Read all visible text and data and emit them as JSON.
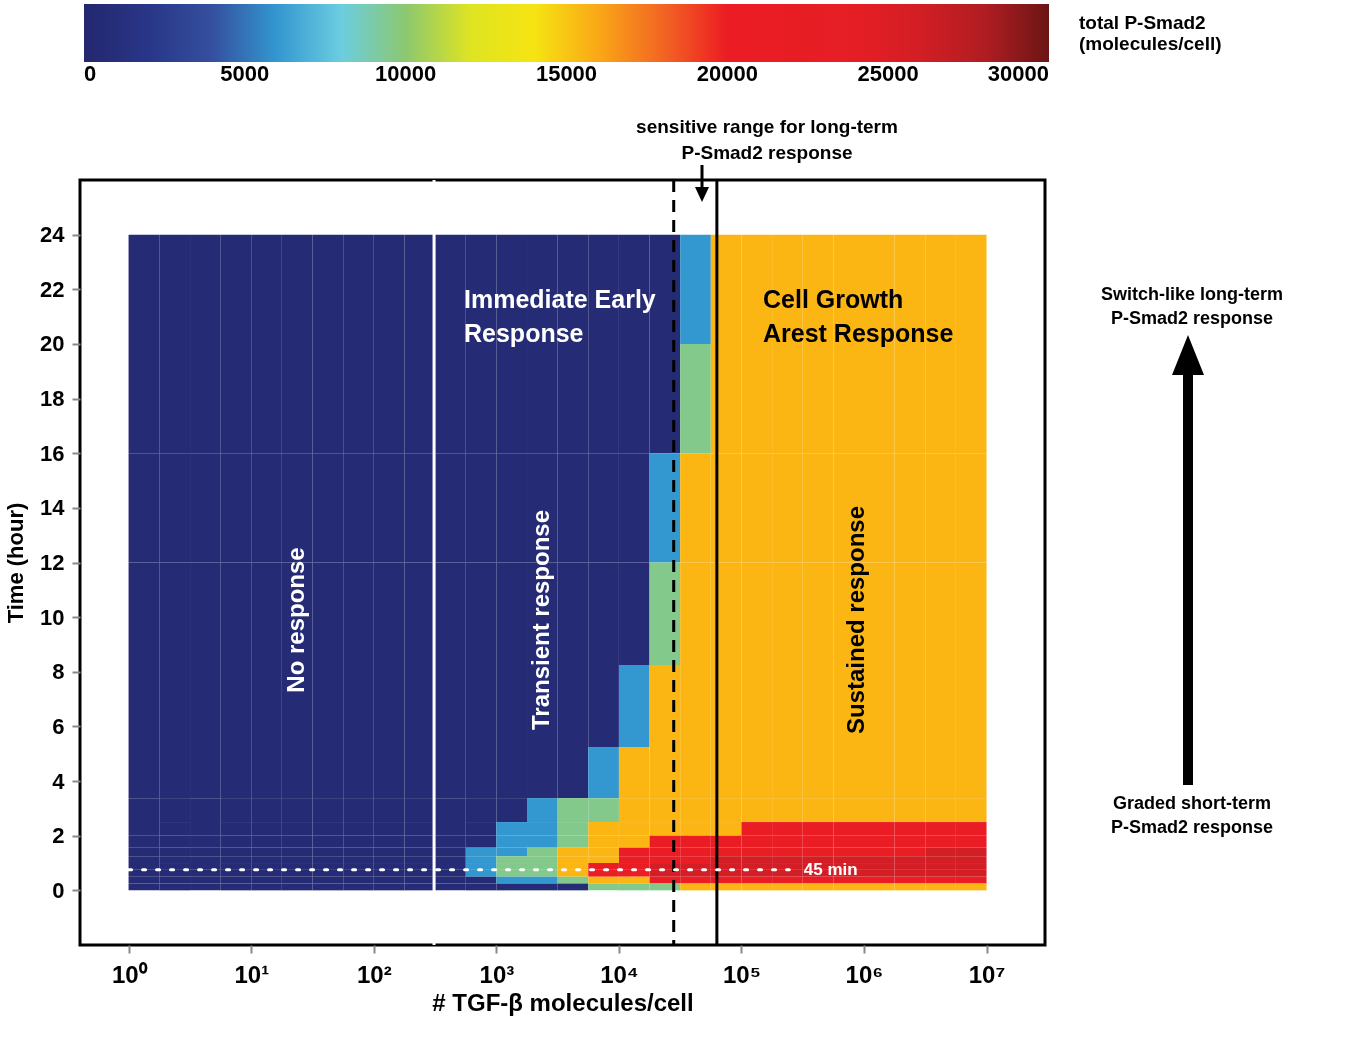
{
  "chart_data": {
    "type": "heatmap",
    "xlabel": "# TGF-β molecules/cell",
    "ylabel": "Time (hour)",
    "clabel": "total P-Smad2\n(molecules/cell)",
    "log": "x",
    "xlim": [
      0.4,
      30000000
    ],
    "ylim": [
      -2,
      26
    ],
    "xticks": [
      {
        "value": 1,
        "label": "10⁰"
      },
      {
        "value": 10,
        "label": "10¹"
      },
      {
        "value": 100,
        "label": "10²"
      },
      {
        "value": 1000,
        "label": "10³"
      },
      {
        "value": 10000,
        "label": "10⁴"
      },
      {
        "value": 100000,
        "label": "10⁵"
      },
      {
        "value": 1000000,
        "label": "10⁶"
      },
      {
        "value": 10000000,
        "label": "10⁷"
      }
    ],
    "yticks": [
      0,
      2,
      4,
      6,
      8,
      10,
      12,
      14,
      16,
      18,
      20,
      22,
      24
    ],
    "clim": [
      0,
      30000
    ],
    "cticks": [
      0,
      5000,
      10000,
      15000,
      20000,
      25000,
      30000
    ],
    "x": [
      1.33,
      2.37,
      4.22,
      7.5,
      13.3,
      23.7,
      42.2,
      75,
      133,
      237,
      422,
      750,
      1334,
      2371,
      4217,
      7499,
      13335,
      23714,
      42170,
      74989,
      133352,
      237137,
      421697,
      749894,
      1333521,
      2371374,
      4216965,
      7498942
    ],
    "y": [
      22,
      18,
      14,
      10,
      6.5,
      4,
      2.75,
      2.25,
      1.75,
      1.375,
      1.125,
      0.875,
      0.625,
      0.375,
      0.125
    ],
    "cells": [
      [
        500,
        500,
        500,
        500,
        500,
        500,
        500,
        500,
        500,
        500,
        500,
        500,
        500,
        500,
        500,
        500,
        500,
        500,
        6000,
        15500,
        15500,
        15500,
        15500,
        15500,
        15500,
        15500,
        15500,
        15500
      ],
      [
        500,
        500,
        500,
        500,
        500,
        500,
        500,
        500,
        500,
        500,
        500,
        500,
        500,
        500,
        500,
        500,
        500,
        500,
        9500,
        15500,
        15500,
        15500,
        15500,
        15500,
        15500,
        15500,
        15500,
        15500
      ],
      [
        500,
        500,
        500,
        500,
        500,
        500,
        500,
        500,
        500,
        500,
        500,
        500,
        500,
        500,
        500,
        500,
        500,
        6000,
        15500,
        15500,
        15500,
        15500,
        15500,
        15500,
        15500,
        15500,
        15500,
        15500
      ],
      [
        500,
        500,
        500,
        500,
        500,
        500,
        500,
        500,
        500,
        500,
        500,
        500,
        500,
        500,
        500,
        500,
        500,
        9500,
        15500,
        15500,
        15500,
        15500,
        15500,
        15500,
        15500,
        15500,
        15500,
        15500
      ],
      [
        500,
        500,
        500,
        500,
        500,
        500,
        500,
        500,
        500,
        500,
        500,
        500,
        500,
        500,
        500,
        500,
        6000,
        15500,
        15500,
        15500,
        15500,
        15500,
        15500,
        15500,
        15500,
        15500,
        15500,
        15500
      ],
      [
        500,
        500,
        500,
        500,
        500,
        500,
        500,
        500,
        500,
        500,
        500,
        500,
        500,
        500,
        500,
        6000,
        15500,
        15500,
        15500,
        15500,
        15500,
        15500,
        15500,
        15500,
        15500,
        15500,
        15500,
        15500
      ],
      [
        500,
        500,
        500,
        500,
        500,
        500,
        500,
        500,
        500,
        500,
        500,
        500,
        500,
        6000,
        9500,
        9500,
        15500,
        15500,
        15500,
        15500,
        15500,
        15500,
        15500,
        15500,
        15500,
        15500,
        15500,
        15500
      ],
      [
        500,
        500,
        500,
        500,
        500,
        500,
        500,
        500,
        500,
        500,
        500,
        500,
        6000,
        6000,
        9500,
        15500,
        15500,
        15500,
        15500,
        15500,
        21000,
        21000,
        21000,
        21000,
        21000,
        21000,
        21000,
        21000
      ],
      [
        500,
        500,
        500,
        500,
        500,
        500,
        500,
        500,
        500,
        500,
        500,
        500,
        6000,
        6000,
        9500,
        15500,
        15500,
        21000,
        21000,
        21000,
        21000,
        21000,
        21000,
        21000,
        21000,
        21000,
        21000,
        21000
      ],
      [
        500,
        500,
        500,
        500,
        500,
        500,
        500,
        500,
        500,
        500,
        500,
        6000,
        6000,
        9500,
        15500,
        15500,
        21000,
        21000,
        21000,
        21000,
        21000,
        21000,
        21000,
        21000,
        21000,
        21000,
        26000,
        26000
      ],
      [
        500,
        500,
        500,
        500,
        500,
        500,
        500,
        500,
        500,
        500,
        500,
        6000,
        9500,
        9500,
        15500,
        15500,
        21000,
        21000,
        21000,
        26000,
        26000,
        26000,
        26000,
        26000,
        26000,
        26000,
        26000,
        26000
      ],
      [
        500,
        500,
        500,
        500,
        500,
        500,
        500,
        500,
        500,
        500,
        500,
        6000,
        9500,
        9500,
        15500,
        21000,
        21000,
        26000,
        26000,
        26000,
        26000,
        26000,
        26000,
        26000,
        26000,
        26000,
        26000,
        26000
      ],
      [
        500,
        500,
        500,
        500,
        500,
        500,
        500,
        500,
        500,
        500,
        500,
        6000,
        9500,
        9500,
        15500,
        21000,
        21000,
        26000,
        26000,
        26000,
        26000,
        26000,
        26000,
        26000,
        26000,
        26000,
        26000,
        26000
      ],
      [
        500,
        500,
        500,
        500,
        500,
        500,
        500,
        500,
        500,
        500,
        500,
        500,
        6000,
        6000,
        9500,
        15500,
        15500,
        21000,
        21000,
        21000,
        21000,
        21000,
        21000,
        21000,
        21000,
        21000,
        21000,
        21000
      ],
      [
        500,
        500,
        500,
        500,
        500,
        500,
        500,
        500,
        500,
        500,
        500,
        500,
        500,
        500,
        500,
        9500,
        9500,
        9500,
        15500,
        15500,
        15500,
        15500,
        15500,
        15500,
        15500,
        15500,
        15500,
        15500
      ]
    ],
    "ref_lines": [
      {
        "axis": "x",
        "value": 310,
        "color": "#ffffff",
        "line_style": "solid"
      },
      {
        "axis": "x",
        "value": 28000,
        "color": "#000000",
        "line_style": "dashed"
      },
      {
        "axis": "x",
        "value": 63000,
        "color": "#000000",
        "line_style": "solid"
      },
      {
        "axis": "y",
        "value": 0.75,
        "color": "#ffffff",
        "line_style": "dotted",
        "label": "45 min"
      }
    ],
    "annotations": [
      "No response",
      "Transient response",
      "Sustained response",
      "Immediate Early\nResponse",
      "Cell Growth\nArest Response",
      "sensitive range for long-term\nP-Smad2 response",
      "Switch-like long-term\nP-Smad2 response",
      "Graded short-term\nP-Smad2 response"
    ]
  }
}
